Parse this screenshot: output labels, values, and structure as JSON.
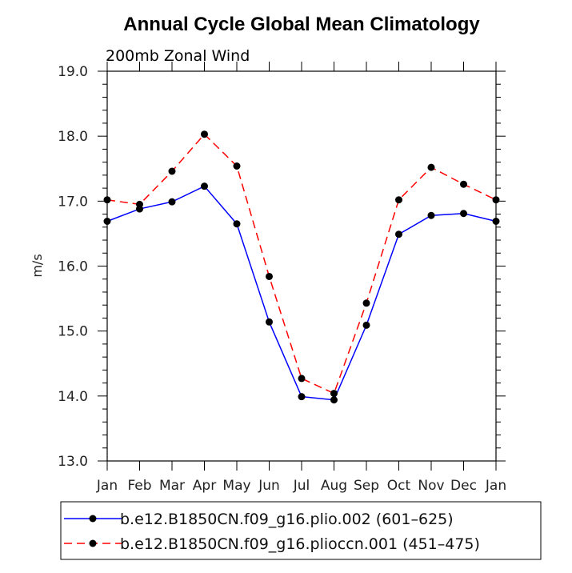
{
  "chart_data": {
    "type": "line",
    "title": "Annual Cycle Global Mean Climatology",
    "subtitle": "200mb Zonal Wind",
    "xlabel": "",
    "ylabel": "m/s",
    "categories": [
      "Jan",
      "Feb",
      "Mar",
      "Apr",
      "May",
      "Jun",
      "Jul",
      "Aug",
      "Sep",
      "Oct",
      "Nov",
      "Dec",
      "Jan"
    ],
    "ylim": [
      13.0,
      19.0
    ],
    "yticks": [
      "13.0",
      "14.0",
      "15.0",
      "16.0",
      "17.0",
      "18.0",
      "19.0"
    ],
    "legend_position": "bottom",
    "series": [
      {
        "name": "b.e12.B1850CN.f09_g16.plio.002 (601–625)",
        "color": "#0000ff",
        "line_style": "solid",
        "marker": "filled-circle",
        "values": [
          16.69,
          16.88,
          16.99,
          17.23,
          16.65,
          15.14,
          13.99,
          13.94,
          15.09,
          16.49,
          16.78,
          16.81,
          16.69
        ]
      },
      {
        "name": "b.e12.B1850CN.f09_g16.plioccn.001 (451–475)",
        "color": "#ff0000",
        "line_style": "dashed",
        "marker": "filled-circle",
        "values": [
          17.02,
          16.95,
          17.46,
          18.03,
          17.54,
          15.84,
          14.27,
          14.04,
          15.43,
          17.02,
          17.52,
          17.26,
          17.02
        ]
      }
    ]
  }
}
